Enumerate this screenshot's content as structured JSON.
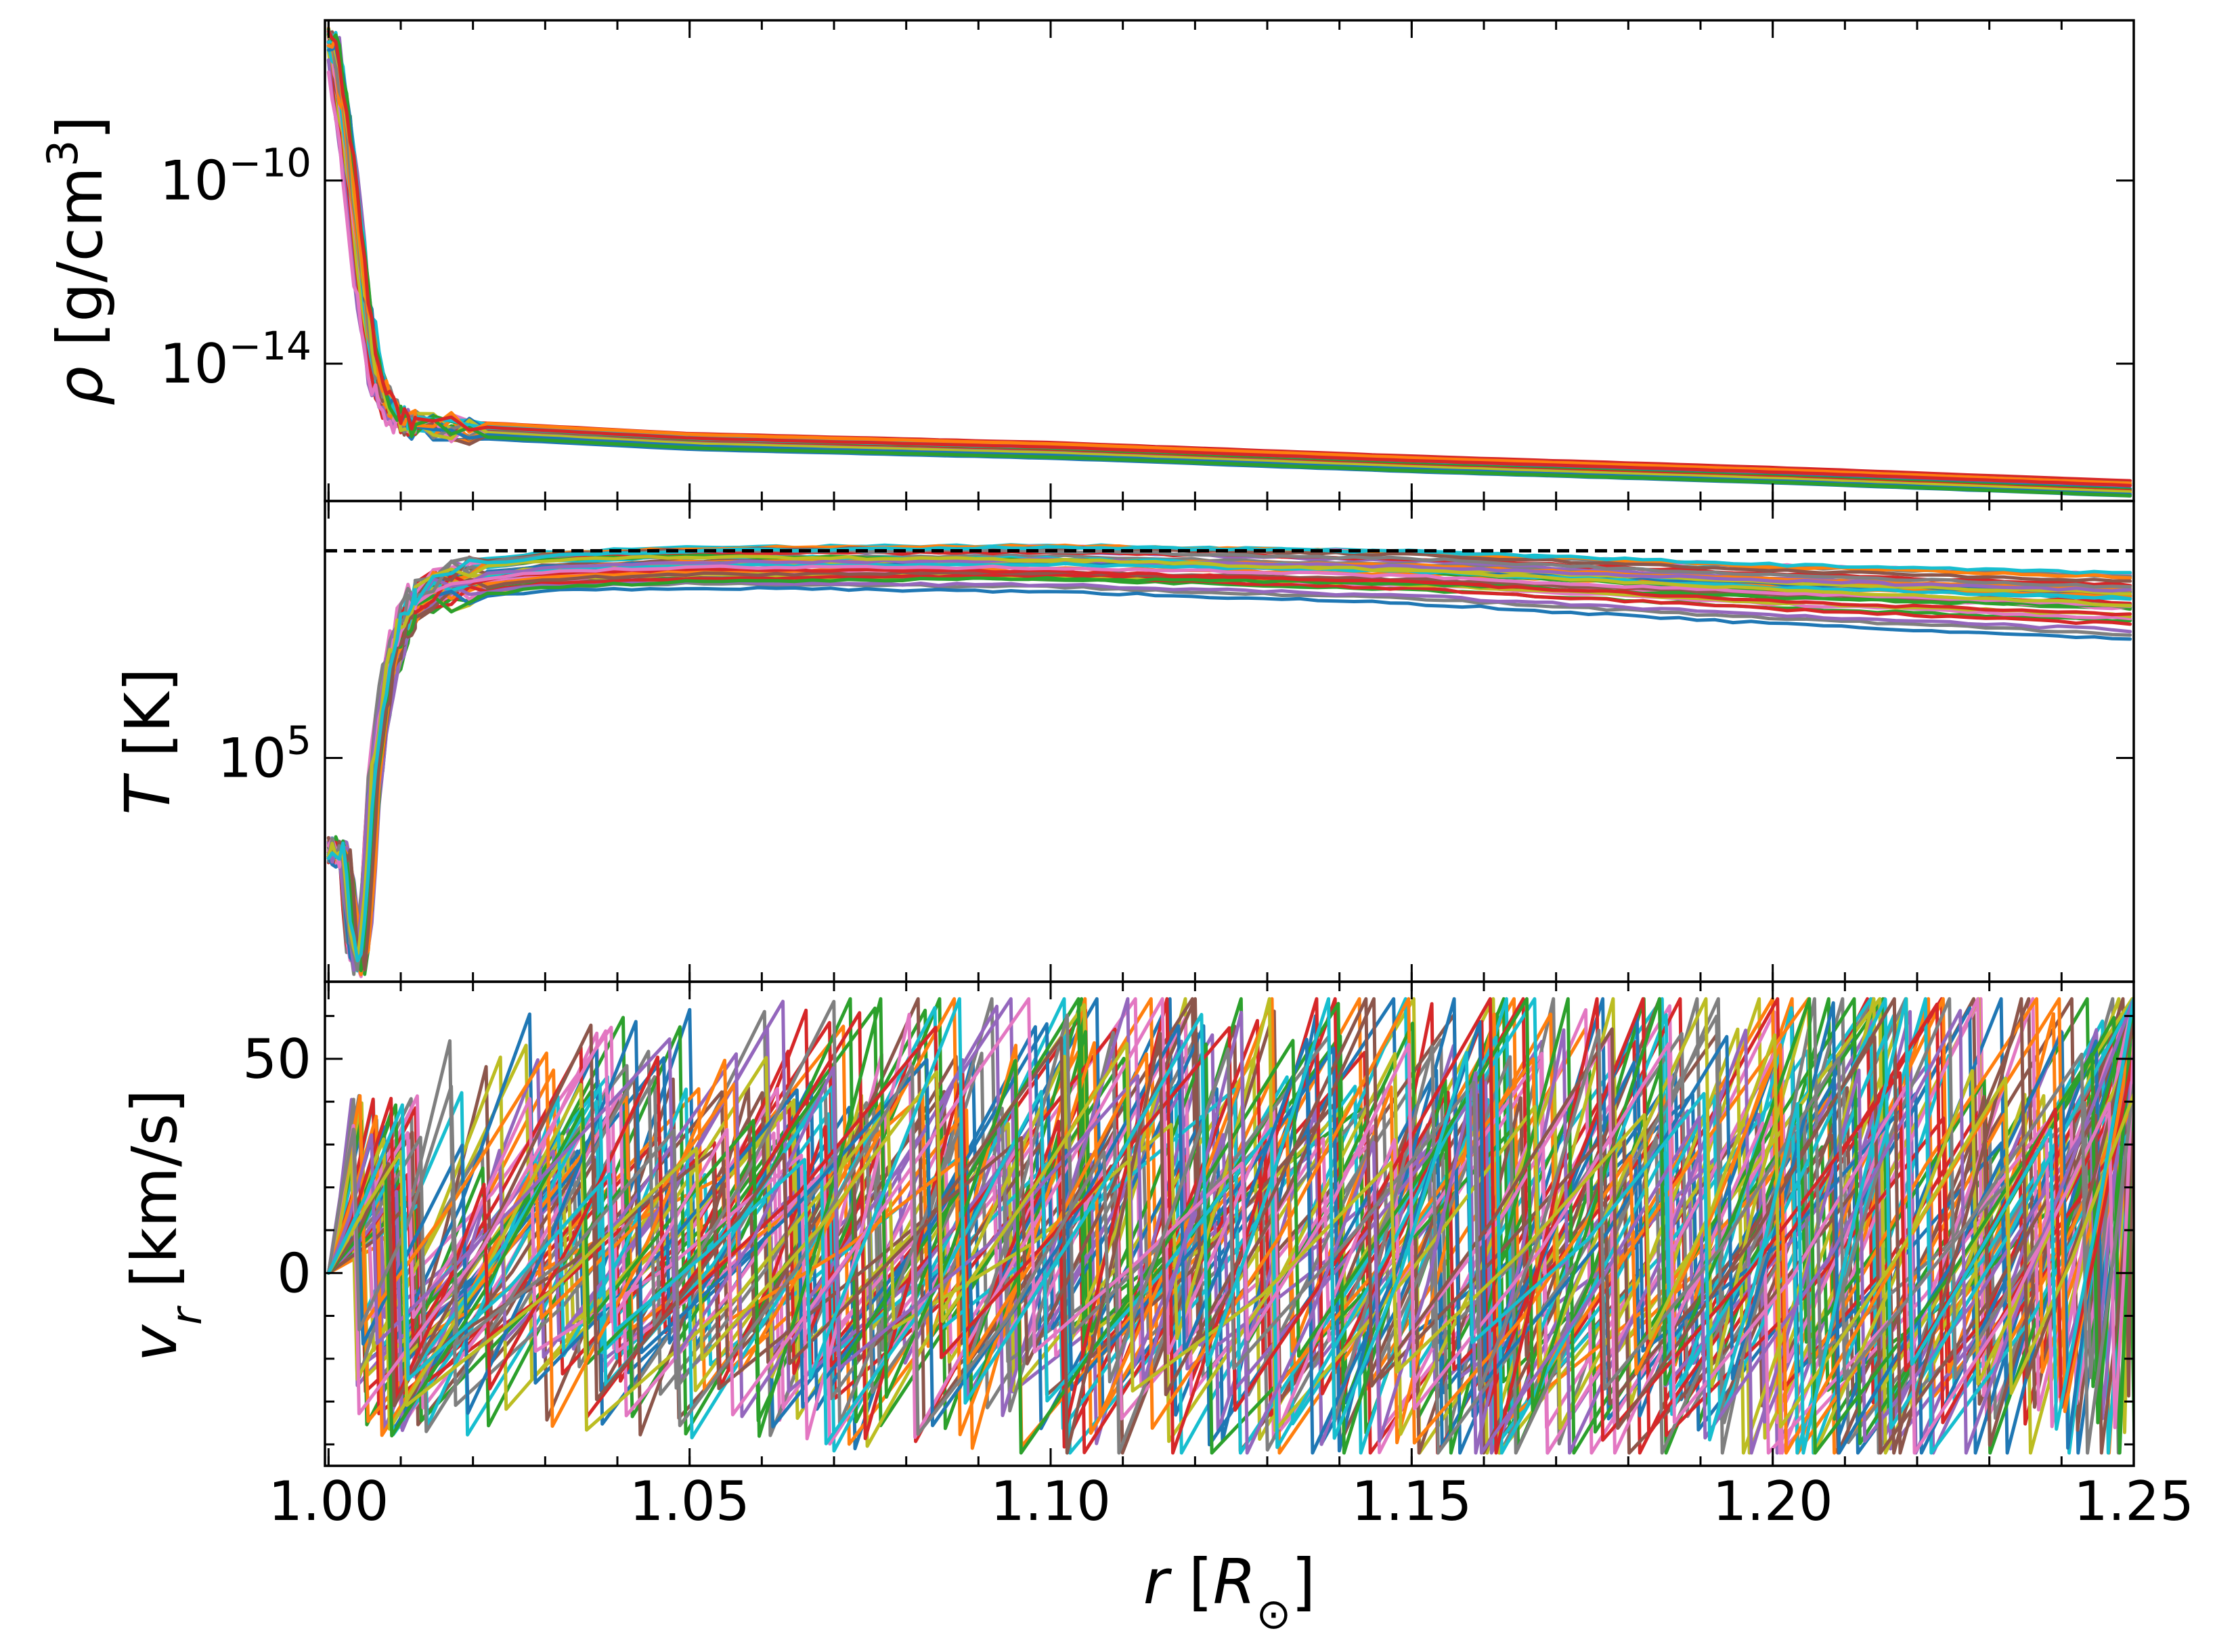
{
  "chart_data": [
    {
      "panel": "density",
      "type": "line",
      "scale": "log",
      "ylabel_html": "<tspan font-style='italic'>ρ</tspan> [g/cm<tspan baseline-shift='super' font-size='62'>3</tspan>]",
      "ylabel": "ρ [g/cm3]",
      "yticks": [
        {
          "value": -10,
          "base": "10",
          "exp": "−10"
        },
        {
          "value": -14,
          "base": "10",
          "exp": "−14"
        }
      ],
      "ylim_log10": [
        -17.0,
        -6.5
      ],
      "profile_log10": {
        "r": [
          1.0,
          1.002,
          1.004,
          1.006,
          1.008,
          1.01,
          1.02,
          1.05,
          1.1,
          1.15,
          1.2,
          1.25
        ],
        "y": [
          -6.9,
          -9.0,
          -12.0,
          -14.2,
          -15.0,
          -15.3,
          -15.45,
          -15.7,
          -15.9,
          -16.2,
          -16.45,
          -16.75
        ]
      },
      "n_series": 24,
      "colors": [
        "#1f77b4",
        "#ff7f0e",
        "#2ca02c",
        "#d62728",
        "#9467bd",
        "#8c564b",
        "#e377c2",
        "#7f7f7f",
        "#bcbd22",
        "#17becf"
      ]
    },
    {
      "panel": "temperature",
      "type": "line",
      "scale": "log",
      "ylabel_html": "<tspan font-style='italic'>T</tspan> [K]",
      "ylabel": "T [K]",
      "yticks": [
        {
          "value": 5.0,
          "base": "10",
          "exp": "5"
        }
      ],
      "ylim_log10": [
        4.46,
        5.62
      ],
      "reference_line_log10": 5.5,
      "profile_log10": {
        "r": [
          1.0,
          1.002,
          1.003,
          1.004,
          1.005,
          1.006,
          1.008,
          1.01,
          1.012,
          1.015,
          1.02,
          1.03,
          1.05,
          1.1,
          1.15,
          1.2,
          1.25
        ],
        "y": [
          4.78,
          4.76,
          4.55,
          4.5,
          4.65,
          4.95,
          5.2,
          5.32,
          5.38,
          5.41,
          5.43,
          5.45,
          5.46,
          5.46,
          5.44,
          5.4,
          5.37
        ]
      },
      "n_series": 40,
      "colors": [
        "#1f77b4",
        "#ff7f0e",
        "#2ca02c",
        "#d62728",
        "#9467bd",
        "#8c564b",
        "#e377c2",
        "#7f7f7f",
        "#bcbd22",
        "#17becf"
      ]
    },
    {
      "panel": "radial_velocity",
      "type": "line",
      "scale": "linear",
      "ylabel_html": "<tspan font-style='italic'>v</tspan><tspan font-style='italic' baseline-shift='sub' font-size='62'>r</tspan> [km/s]",
      "ylabel": "vr [km/s]",
      "yticks": [
        {
          "value": 50,
          "label": "50"
        },
        {
          "value": 0,
          "label": "0"
        }
      ],
      "yminor": [
        -40,
        -30,
        -20,
        -10,
        10,
        20,
        30,
        40,
        60
      ],
      "ylim": [
        -45,
        68
      ],
      "sawtooth": {
        "rise": [
          20,
          60
        ],
        "drop": [
          -10,
          -38
        ],
        "amp_growth": 1.6
      },
      "n_series": 60,
      "colors": [
        "#1f77b4",
        "#ff7f0e",
        "#2ca02c",
        "#d62728",
        "#9467bd",
        "#8c564b",
        "#e377c2",
        "#7f7f7f",
        "#bcbd22",
        "#17becf"
      ]
    }
  ],
  "xaxis": {
    "label_html": "<tspan font-style='italic'>r</tspan> [<tspan font-style='italic'>R</tspan><tspan baseline-shift='sub' font-size='62'>⊙</tspan>]",
    "label": "r [R⊙]",
    "xlim": [
      0.9995,
      1.25
    ],
    "major_ticks": [
      1.0,
      1.05,
      1.1,
      1.15,
      1.2,
      1.25
    ],
    "tick_labels": [
      "1.00",
      "1.05",
      "1.10",
      "1.15",
      "1.20",
      "1.25"
    ],
    "minor_step": 0.01
  }
}
